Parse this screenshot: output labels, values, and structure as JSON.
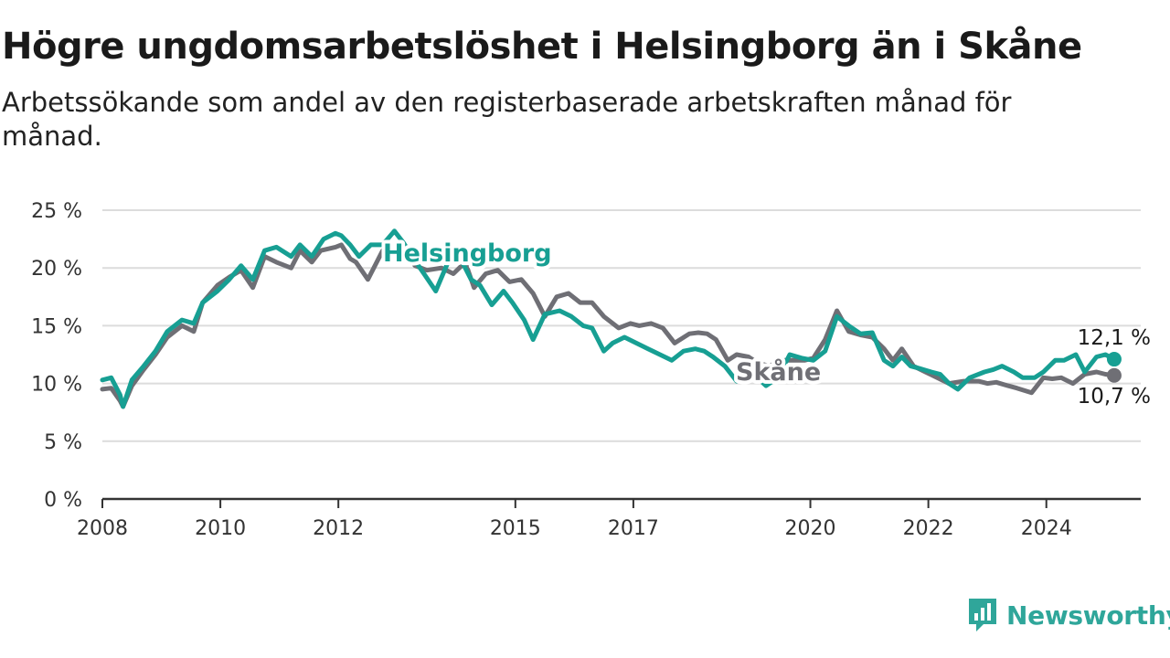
{
  "header": {
    "title": "Högre ungdomsarbetslöshet i Helsingborg än i Skåne",
    "subtitle": "Arbetssökande som andel av den registerbaserade arbetskraften månad för månad."
  },
  "brand": {
    "name": "Newsworthy",
    "logo_icon": "newsworthy-logo-icon",
    "color": "#2fa69a"
  },
  "chart_data": {
    "type": "line",
    "ylim": [
      0,
      25
    ],
    "y_ticks": [
      0,
      5,
      10,
      15,
      20,
      25
    ],
    "y_tick_labels": [
      "0 %",
      "5 %",
      "10 %",
      "15 %",
      "20 %",
      "25 %"
    ],
    "xlim": [
      2008,
      2025.6
    ],
    "x_ticks": [
      2008,
      2010,
      2012,
      2015,
      2017,
      2020,
      2022,
      2024
    ],
    "x_tick_labels": [
      "2008",
      "2010",
      "2012",
      "2015",
      "2017",
      "2020",
      "2022",
      "2024"
    ],
    "grid": true,
    "series": [
      {
        "name": "Skåne",
        "color": "#6f6f75",
        "end_label": "10,7 %",
        "x": [
          2008.0,
          2008.15,
          2008.3,
          2008.35,
          2008.5,
          2008.7,
          2008.9,
          2009.1,
          2009.35,
          2009.55,
          2009.7,
          2009.95,
          2010.15,
          2010.35,
          2010.55,
          2010.75,
          2010.95,
          2011.2,
          2011.35,
          2011.55,
          2011.7,
          2011.95,
          2012.05,
          2012.2,
          2012.3,
          2012.5,
          2012.75,
          2013.0,
          2013.15,
          2013.3,
          2013.5,
          2013.75,
          2013.95,
          2014.15,
          2014.3,
          2014.5,
          2014.7,
          2014.9,
          2015.1,
          2015.3,
          2015.5,
          2015.7,
          2015.9,
          2016.1,
          2016.3,
          2016.5,
          2016.75,
          2016.95,
          2017.1,
          2017.3,
          2017.5,
          2017.7,
          2017.95,
          2018.1,
          2018.25,
          2018.4,
          2018.6,
          2018.75,
          2018.95,
          2019.1,
          2019.3,
          2019.5,
          2019.7,
          2019.9,
          2020.05,
          2020.25,
          2020.45,
          2020.65,
          2020.85,
          2021.05,
          2021.25,
          2021.4,
          2021.55,
          2021.75,
          2021.95,
          2022.15,
          2022.35,
          2022.6,
          2022.85,
          2023.0,
          2023.15,
          2023.35,
          2023.5,
          2023.75,
          2023.95,
          2024.1,
          2024.25,
          2024.45,
          2024.65,
          2024.85,
          2025.0,
          2025.15
        ],
        "values": [
          9.5,
          9.6,
          8.5,
          8.0,
          9.8,
          11.2,
          12.5,
          14.0,
          15.0,
          14.5,
          17.0,
          18.5,
          19.2,
          19.8,
          18.3,
          21.0,
          20.5,
          20.0,
          21.5,
          20.5,
          21.5,
          21.8,
          22.0,
          20.8,
          20.5,
          19.0,
          21.5,
          21.0,
          21.2,
          20.2,
          19.8,
          20.0,
          19.5,
          20.5,
          18.3,
          19.5,
          19.8,
          18.8,
          19.0,
          17.8,
          15.8,
          17.5,
          17.8,
          17.0,
          17.0,
          15.8,
          14.8,
          15.2,
          15.0,
          15.2,
          14.8,
          13.5,
          14.3,
          14.4,
          14.3,
          13.8,
          12.0,
          12.5,
          12.3,
          11.8,
          11.5,
          12.0,
          12.0,
          12.0,
          12.2,
          13.8,
          16.3,
          14.5,
          14.2,
          14.0,
          13.0,
          12.0,
          13.0,
          11.5,
          11.0,
          10.5,
          10.0,
          10.2,
          10.2,
          10.0,
          10.1,
          9.8,
          9.6,
          9.2,
          10.5,
          10.4,
          10.5,
          10.0,
          10.8,
          11.0,
          10.8,
          10.7
        ]
      },
      {
        "name": "Helsingborg",
        "color": "#179f93",
        "end_label": "12,1 %",
        "x": [
          2008.0,
          2008.15,
          2008.3,
          2008.35,
          2008.5,
          2008.7,
          2008.9,
          2009.1,
          2009.35,
          2009.55,
          2009.7,
          2009.95,
          2010.15,
          2010.35,
          2010.55,
          2010.75,
          2010.95,
          2011.2,
          2011.35,
          2011.55,
          2011.75,
          2011.95,
          2012.05,
          2012.2,
          2012.35,
          2012.55,
          2012.75,
          2012.95,
          2013.1,
          2013.25,
          2013.45,
          2013.65,
          2013.9,
          2014.05,
          2014.25,
          2014.4,
          2014.6,
          2014.8,
          2014.95,
          2015.15,
          2015.3,
          2015.5,
          2015.75,
          2015.95,
          2016.15,
          2016.3,
          2016.5,
          2016.65,
          2016.85,
          2017.05,
          2017.25,
          2017.45,
          2017.65,
          2017.85,
          2018.05,
          2018.2,
          2018.35,
          2018.55,
          2018.75,
          2018.95,
          2019.1,
          2019.25,
          2019.45,
          2019.65,
          2019.85,
          2020.05,
          2020.25,
          2020.45,
          2020.65,
          2020.85,
          2021.05,
          2021.25,
          2021.4,
          2021.55,
          2021.7,
          2021.85,
          2022.05,
          2022.2,
          2022.35,
          2022.5,
          2022.7,
          2022.95,
          2023.1,
          2023.25,
          2023.45,
          2023.6,
          2023.8,
          2023.95,
          2024.15,
          2024.3,
          2024.5,
          2024.65,
          2024.85,
          2025.0,
          2025.15
        ],
        "values": [
          10.3,
          10.5,
          9.0,
          8.0,
          10.3,
          11.5,
          12.8,
          14.5,
          15.5,
          15.2,
          17.0,
          18.0,
          19.0,
          20.2,
          19.0,
          21.5,
          21.8,
          21.0,
          22.0,
          21.0,
          22.5,
          23.0,
          22.8,
          22.0,
          21.0,
          22.0,
          22.0,
          23.2,
          22.2,
          21.0,
          19.5,
          18.0,
          21.0,
          21.0,
          19.0,
          18.5,
          16.8,
          18.0,
          17.0,
          15.5,
          13.8,
          16.0,
          16.3,
          15.8,
          15.0,
          14.8,
          12.8,
          13.5,
          14.0,
          13.5,
          13.0,
          12.5,
          12.0,
          12.8,
          13.0,
          12.8,
          12.3,
          11.5,
          10.2,
          11.0,
          10.5,
          9.8,
          10.5,
          12.5,
          12.2,
          12.0,
          12.8,
          15.8,
          15.0,
          14.3,
          14.4,
          12.0,
          11.5,
          12.3,
          11.5,
          11.3,
          11.0,
          10.8,
          10.0,
          9.5,
          10.5,
          11.0,
          11.2,
          11.5,
          11.0,
          10.5,
          10.5,
          11.0,
          12.0,
          12.0,
          12.5,
          11.0,
          12.3,
          12.5,
          12.1
        ]
      }
    ]
  }
}
